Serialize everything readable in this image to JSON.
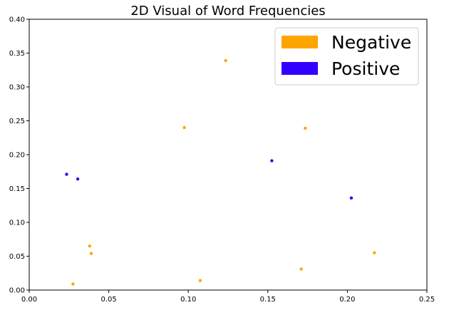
{
  "chart_data": {
    "type": "scatter",
    "title": "2D Visual of Word Frequencies",
    "xlabel": "",
    "ylabel": "",
    "xlim": [
      0,
      0.25
    ],
    "ylim": [
      0,
      0.4
    ],
    "x_ticks": [
      "0.00",
      "0.05",
      "0.10",
      "0.15",
      "0.20",
      "0.25"
    ],
    "y_ticks": [
      "0.00",
      "0.05",
      "0.10",
      "0.15",
      "0.20",
      "0.25",
      "0.30",
      "0.35",
      "0.40"
    ],
    "grid": false,
    "legend_position": "top-right",
    "series": [
      {
        "name": "Negative",
        "color": "#ffa500",
        "points": [
          {
            "x": 0.1235,
            "y": 0.339
          },
          {
            "x": 0.0975,
            "y": 0.24
          },
          {
            "x": 0.1735,
            "y": 0.239
          },
          {
            "x": 0.038,
            "y": 0.065
          },
          {
            "x": 0.039,
            "y": 0.054
          },
          {
            "x": 0.217,
            "y": 0.055
          },
          {
            "x": 0.171,
            "y": 0.031
          },
          {
            "x": 0.1075,
            "y": 0.014
          },
          {
            "x": 0.0275,
            "y": 0.009
          }
        ]
      },
      {
        "name": "Positive",
        "color": "#3300ff",
        "points": [
          {
            "x": 0.0235,
            "y": 0.171
          },
          {
            "x": 0.0305,
            "y": 0.164
          },
          {
            "x": 0.1525,
            "y": 0.191
          },
          {
            "x": 0.2025,
            "y": 0.136
          }
        ]
      }
    ]
  }
}
